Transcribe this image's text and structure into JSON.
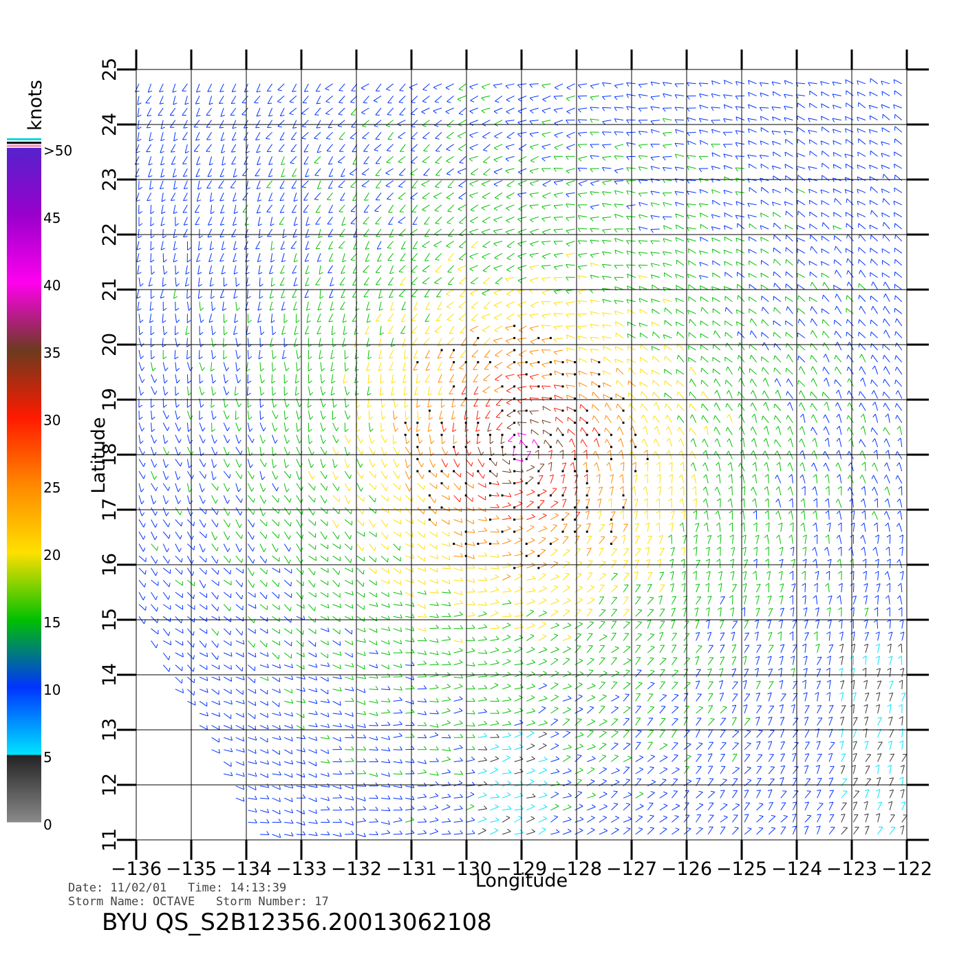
{
  "map": {
    "x_axis_label": "Longitude",
    "y_axis_label": "Latitude",
    "lon_ticks": [
      "-136",
      "-135",
      "-134",
      "-133",
      "-132",
      "-131",
      "-130",
      "-129",
      "-128",
      "-127",
      "-126",
      "-125",
      "-124",
      "-123",
      "-122"
    ],
    "lat_ticks": [
      "11",
      "12",
      "13",
      "14",
      "15",
      "16",
      "17",
      "18",
      "19",
      "20",
      "21",
      "22",
      "23",
      "24",
      "25"
    ],
    "lon_range": [
      -136,
      -122
    ],
    "lat_range": [
      11,
      25
    ],
    "storm_center_lon": -129.0,
    "storm_center_lat": 18.1
  },
  "colorbar": {
    "unit_label": "knots",
    "bins": [
      {
        "value": 0,
        "label": "0",
        "color": "#8a8a8a"
      },
      {
        "value": 5,
        "label": "5",
        "color": "#00e5ff"
      },
      {
        "value": 10,
        "label": "10",
        "color": "#0033ff"
      },
      {
        "value": 15,
        "label": "15",
        "color": "#00c000"
      },
      {
        "value": 20,
        "label": "20",
        "color": "#ffe000"
      },
      {
        "value": 25,
        "label": "25",
        "color": "#ff8800"
      },
      {
        "value": 30,
        "label": "30",
        "color": "#ff1a00"
      },
      {
        "value": 35,
        "label": "35",
        "color": "#6b3a1e"
      },
      {
        "value": 40,
        "label": "40",
        "color": "#ff00ee"
      },
      {
        "value": 45,
        "label": "45",
        "color": "#9900cc"
      },
      {
        "value": 50,
        "label": ">50",
        "color": "#5522cc"
      }
    ]
  },
  "footer": {
    "date_line": "Date: 11/02/01   Time: 14:13:39",
    "storm_line": "Storm Name: OCTAVE   Storm Number: 17",
    "product_id": "BYU QS_S2B12356.20013062108"
  }
}
